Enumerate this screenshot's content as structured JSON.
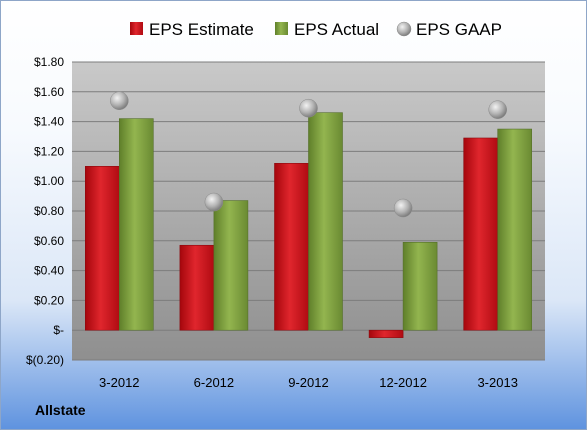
{
  "company_label": "Allstate",
  "chart_data": {
    "type": "bar",
    "categories": [
      "3-2012",
      "6-2012",
      "9-2012",
      "12-2012",
      "3-2013"
    ],
    "series": [
      {
        "name": "EPS Estimate",
        "type": "bar",
        "values": [
          1.1,
          0.57,
          1.12,
          -0.05,
          1.29
        ],
        "color": "#c8161d"
      },
      {
        "name": "EPS Actual",
        "type": "bar",
        "values": [
          1.42,
          0.87,
          1.46,
          0.59,
          1.35
        ],
        "color": "#7a9c3c"
      },
      {
        "name": "EPS GAAP",
        "type": "scatter",
        "values": [
          1.54,
          0.86,
          1.49,
          0.82,
          1.48
        ],
        "color": "#b0b0b0"
      }
    ],
    "y_ticks": [
      {
        "value": 1.8,
        "label": "$1.80"
      },
      {
        "value": 1.6,
        "label": "$1.60"
      },
      {
        "value": 1.4,
        "label": "$1.40"
      },
      {
        "value": 1.2,
        "label": "$1.20"
      },
      {
        "value": 1.0,
        "label": "$1.00"
      },
      {
        "value": 0.8,
        "label": "$0.80"
      },
      {
        "value": 0.6,
        "label": "$0.60"
      },
      {
        "value": 0.4,
        "label": "$0.40"
      },
      {
        "value": 0.2,
        "label": "$0.20"
      },
      {
        "value": 0.0,
        "label": "$-"
      },
      {
        "value": -0.2,
        "label": "$(0.20)"
      }
    ],
    "ylim": [
      -0.2,
      1.8
    ],
    "grid": true,
    "legend_position": "top"
  }
}
